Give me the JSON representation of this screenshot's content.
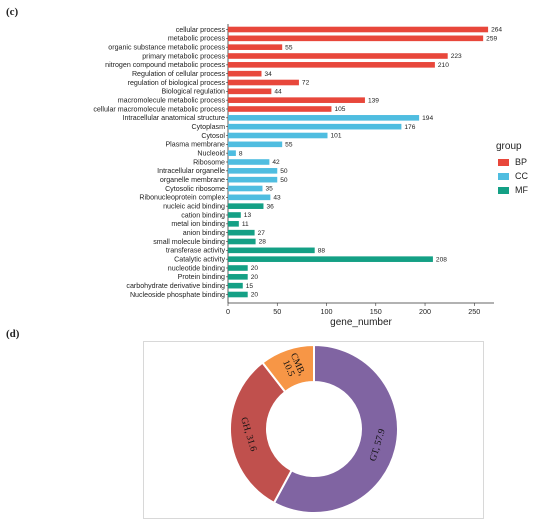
{
  "panel_c_label": "(c)",
  "panel_d_label": "(d)",
  "chart_data": [
    {
      "type": "bar",
      "orientation": "horizontal",
      "categories": [
        "cellular process",
        "metabolic process",
        "organic substance metabolic process",
        "primary metabolic process",
        "nitrogen compound metabolic process",
        "Regulation of cellular process",
        "regulation of biological process",
        "Biological regulation",
        "macromolecule metabolic process",
        "cellular macromolecule metabolic process",
        "Intracellular anatomical structure",
        "Cytoplasm",
        "Cytosol",
        "Plasma membrane",
        "Nucleoid",
        "Ribosome",
        "Intracellular organelle",
        "organelle membrane",
        "Cytosolic ribosome",
        "Ribonucleoprotein complex",
        "nucleic acid binding",
        "cation binding",
        "metal ion binding",
        "anion binding",
        "small molecule binding",
        "transferase activity",
        "Catalytic activity",
        "nucleotide binding",
        "Protein binding",
        "carbohydrate derivative binding",
        "Nucleoside phosphate binding"
      ],
      "values": [
        264,
        259,
        55,
        223,
        210,
        34,
        72,
        44,
        139,
        105,
        194,
        176,
        101,
        55,
        8,
        42,
        50,
        50,
        35,
        43,
        36,
        13,
        11,
        27,
        28,
        88,
        208,
        20,
        20,
        15,
        20
      ],
      "value_labels": [
        "264",
        "259",
        "55",
        "223",
        "210",
        "34",
        "72",
        "44",
        "139",
        "105",
        "194",
        "176",
        "101",
        "55",
        "8",
        "42",
        "50",
        "50",
        "35",
        "43",
        "36",
        "13",
        "11",
        "27",
        "28",
        "88",
        "208",
        "20",
        "20",
        "15",
        "20"
      ],
      "groups": [
        "BP",
        "BP",
        "BP",
        "BP",
        "BP",
        "BP",
        "BP",
        "BP",
        "BP",
        "BP",
        "CC",
        "CC",
        "CC",
        "CC",
        "CC",
        "CC",
        "CC",
        "CC",
        "CC",
        "CC",
        "MF",
        "MF",
        "MF",
        "MF",
        "MF",
        "MF",
        "MF",
        "MF",
        "MF",
        "MF",
        "MF"
      ],
      "xlabel": "gene_number",
      "xlim": [
        0,
        270
      ],
      "xticks": [
        0,
        50,
        100,
        150,
        200,
        250
      ],
      "xtick_labels": [
        "0",
        "50",
        "100",
        "150",
        "200",
        "250"
      ],
      "legend": {
        "title": "group",
        "placement": "right",
        "entries": [
          {
            "name": "BP",
            "color": "#e8473b"
          },
          {
            "name": "CC",
            "color": "#4fbde0"
          },
          {
            "name": "MF",
            "color": "#14a085"
          }
        ]
      }
    },
    {
      "type": "pie",
      "style": "donut",
      "slices": [
        {
          "label": "GT, 57.9",
          "name": "GT",
          "value": 57.9,
          "color": "#8064a2"
        },
        {
          "label": "GH, 31.6",
          "name": "GH",
          "value": 31.6,
          "color": "#c0504d"
        },
        {
          "label": "CMB, 10.5",
          "name": "CMB",
          "value": 10.5,
          "color": "#f79646"
        }
      ]
    }
  ]
}
